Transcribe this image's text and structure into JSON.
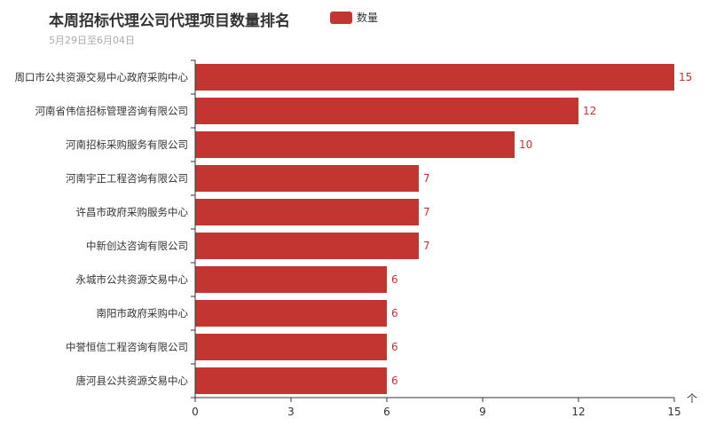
{
  "chart_data": {
    "type": "bar",
    "orientation": "horizontal",
    "title": "本周招标代理公司代理项目数量排名",
    "subtitle": "5月29日至6月04日",
    "categories": [
      "周口市公共资源交易中心政府采购中心",
      "河南省伟信招标管理咨询有限公司",
      "河南招标采购服务有限公司",
      "河南宇正工程咨询有限公司",
      "许昌市政府采购服务中心",
      "中新创达咨询有限公司",
      "永城市公共资源交易中心",
      "南阳市政府采购中心",
      "中誉恒信工程咨询有限公司",
      "唐河县公共资源交易中心"
    ],
    "series": [
      {
        "name": "数量",
        "values": [
          15,
          12,
          10,
          7,
          7,
          7,
          6,
          6,
          6,
          6
        ],
        "color": "#c23531"
      }
    ],
    "xlim": [
      0,
      15
    ],
    "xticks": [
      "0",
      "3",
      "6",
      "9",
      "12",
      "15"
    ],
    "grid": false,
    "legend": "top",
    "axis_arrow": "个"
  }
}
